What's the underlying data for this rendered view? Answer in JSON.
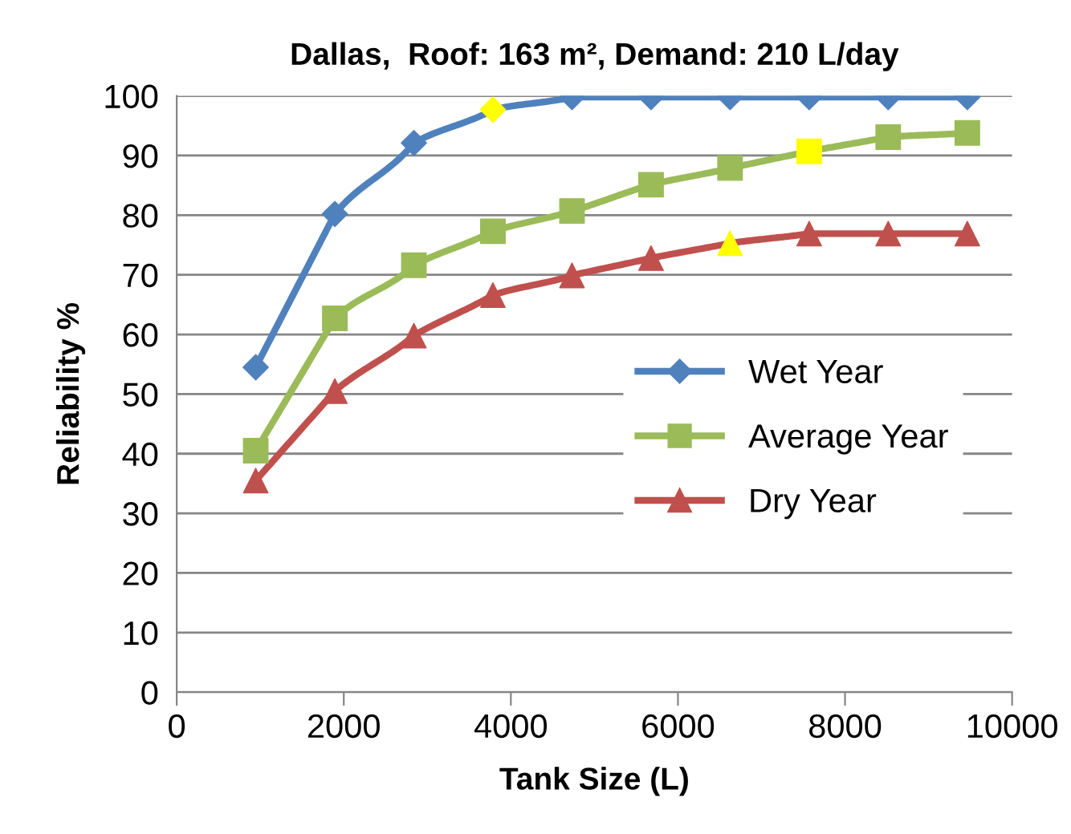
{
  "chart_data": {
    "type": "line",
    "title": "Dallas,  Roof: 163 m², Demand: 210 L/day",
    "xlabel": "Tank Size (L)",
    "ylabel": "Reliability %",
    "x": [
      946,
      1893,
      2839,
      3785,
      4732,
      5678,
      6624,
      7571,
      8517,
      9464
    ],
    "series": [
      {
        "name": "Wet Year",
        "color": "#4f81bd",
        "marker": "diamond",
        "values": [
          54.5,
          80.2,
          92.1,
          97.7,
          99.8,
          99.8,
          99.8,
          99.8,
          99.8,
          99.8
        ],
        "colors": [
          "#4f81bd",
          "#4f81bd",
          "#4f81bd",
          "#ffff00",
          "#4f81bd",
          "#4f81bd",
          "#4f81bd",
          "#4f81bd",
          "#4f81bd",
          "#4f81bd"
        ]
      },
      {
        "name": "Average Year",
        "color": "#9bbb59",
        "marker": "square",
        "values": [
          40.5,
          62.7,
          71.6,
          77.3,
          80.7,
          85.1,
          87.9,
          90.7,
          93.1,
          93.8
        ],
        "colors": [
          "#9bbb59",
          "#9bbb59",
          "#9bbb59",
          "#9bbb59",
          "#9bbb59",
          "#9bbb59",
          "#9bbb59",
          "#ffff00",
          "#9bbb59",
          "#9bbb59"
        ]
      },
      {
        "name": "Dry Year",
        "color": "#c0504d",
        "marker": "triangle",
        "values": [
          35.5,
          50.5,
          59.8,
          66.6,
          69.9,
          72.8,
          75.3,
          76.9,
          76.9,
          76.9
        ],
        "colors": [
          "#c0504d",
          "#c0504d",
          "#c0504d",
          "#c0504d",
          "#c0504d",
          "#c0504d",
          "#ffff00",
          "#c0504d",
          "#c0504d",
          "#c0504d"
        ]
      }
    ],
    "xlim": [
      0,
      10000
    ],
    "xticks": [
      0,
      2000,
      4000,
      6000,
      8000,
      10000
    ],
    "ylim": [
      0,
      100
    ],
    "yticks": [
      0,
      10,
      20,
      30,
      40,
      50,
      60,
      70,
      80,
      90,
      100
    ],
    "grid": "y",
    "legend": "bottom right",
    "line_style": "solid"
  }
}
